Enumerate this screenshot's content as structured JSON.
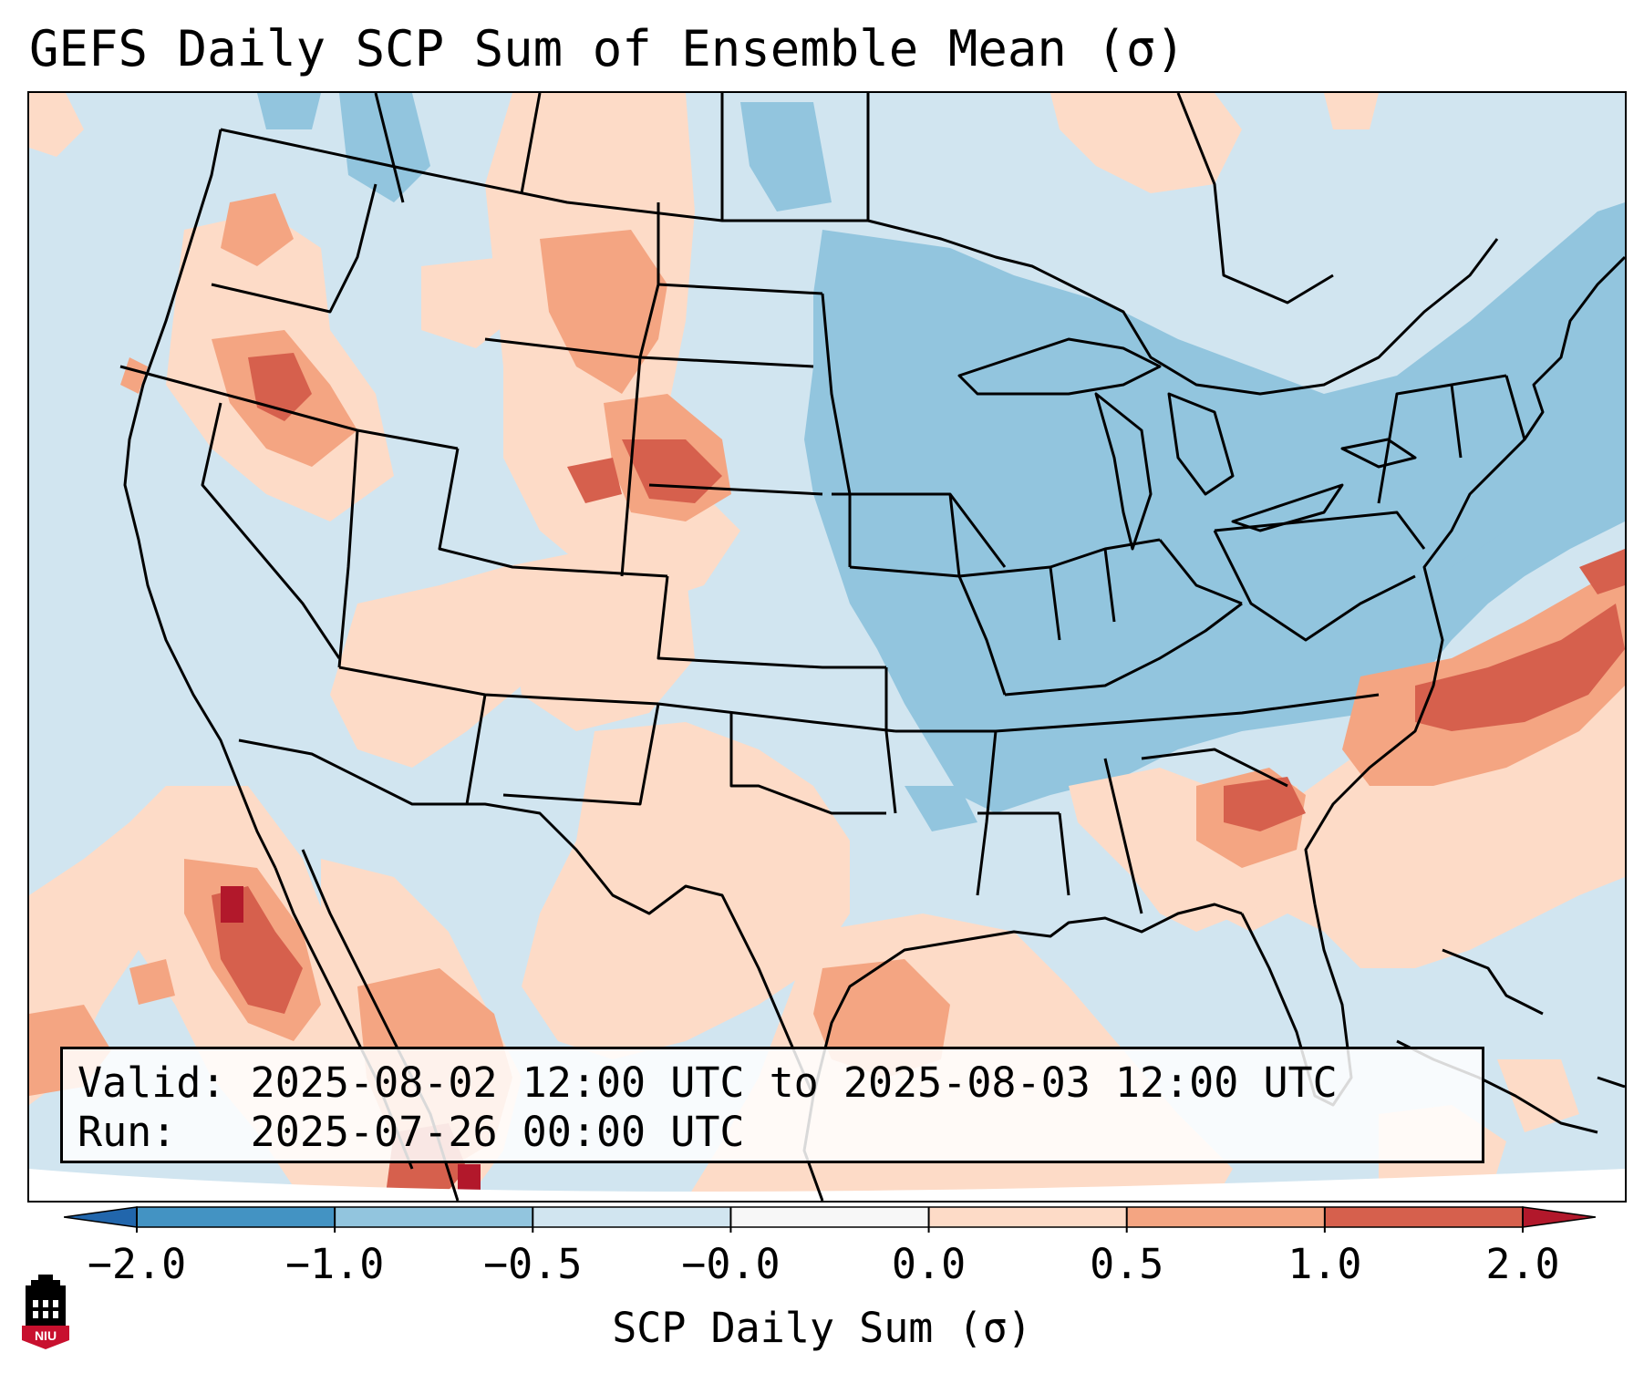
{
  "title": "GEFS Daily SCP Sum of Ensemble Mean (σ)",
  "info": {
    "valid_label": "Valid:",
    "valid_value": "2025-08-02 12:00 UTC to 2025-08-03 12:00 UTC",
    "run_label": "Run:",
    "run_value": "2025-07-26 00:00 UTC"
  },
  "colorbar": {
    "label": "SCP Daily Sum (σ)",
    "ticks": [
      "−2.0",
      "−1.0",
      "−0.5",
      "−0.0",
      "0.0",
      "0.5",
      "1.0",
      "2.0"
    ],
    "bins": [
      {
        "range": "< -2.0",
        "color": "#2166ac"
      },
      {
        "range": "-2.0 to -1.0",
        "color": "#4393c3"
      },
      {
        "range": "-1.0 to -0.5",
        "color": "#92c5de"
      },
      {
        "range": "-0.5 to -0.0",
        "color": "#d1e5f0"
      },
      {
        "range": "-0.0 to 0.0",
        "color": "#f7f7f7"
      },
      {
        "range": "0.0 to 0.5",
        "color": "#fddbc7"
      },
      {
        "range": "0.5 to 1.0",
        "color": "#f4a582"
      },
      {
        "range": "1.0 to 2.0",
        "color": "#d6604d"
      },
      {
        "range": "> 2.0",
        "color": "#b2182b"
      }
    ]
  },
  "logo": {
    "text": "NIU",
    "color": "#c8102e"
  },
  "map": {
    "background_color": "#d1e5f0",
    "below_mean_color": "#92c5de",
    "above_mean_color": "#fddbc7",
    "moderate_above_color": "#f4a582",
    "strong_above_color": "#d6604d",
    "extreme_color": "#b2182b"
  }
}
